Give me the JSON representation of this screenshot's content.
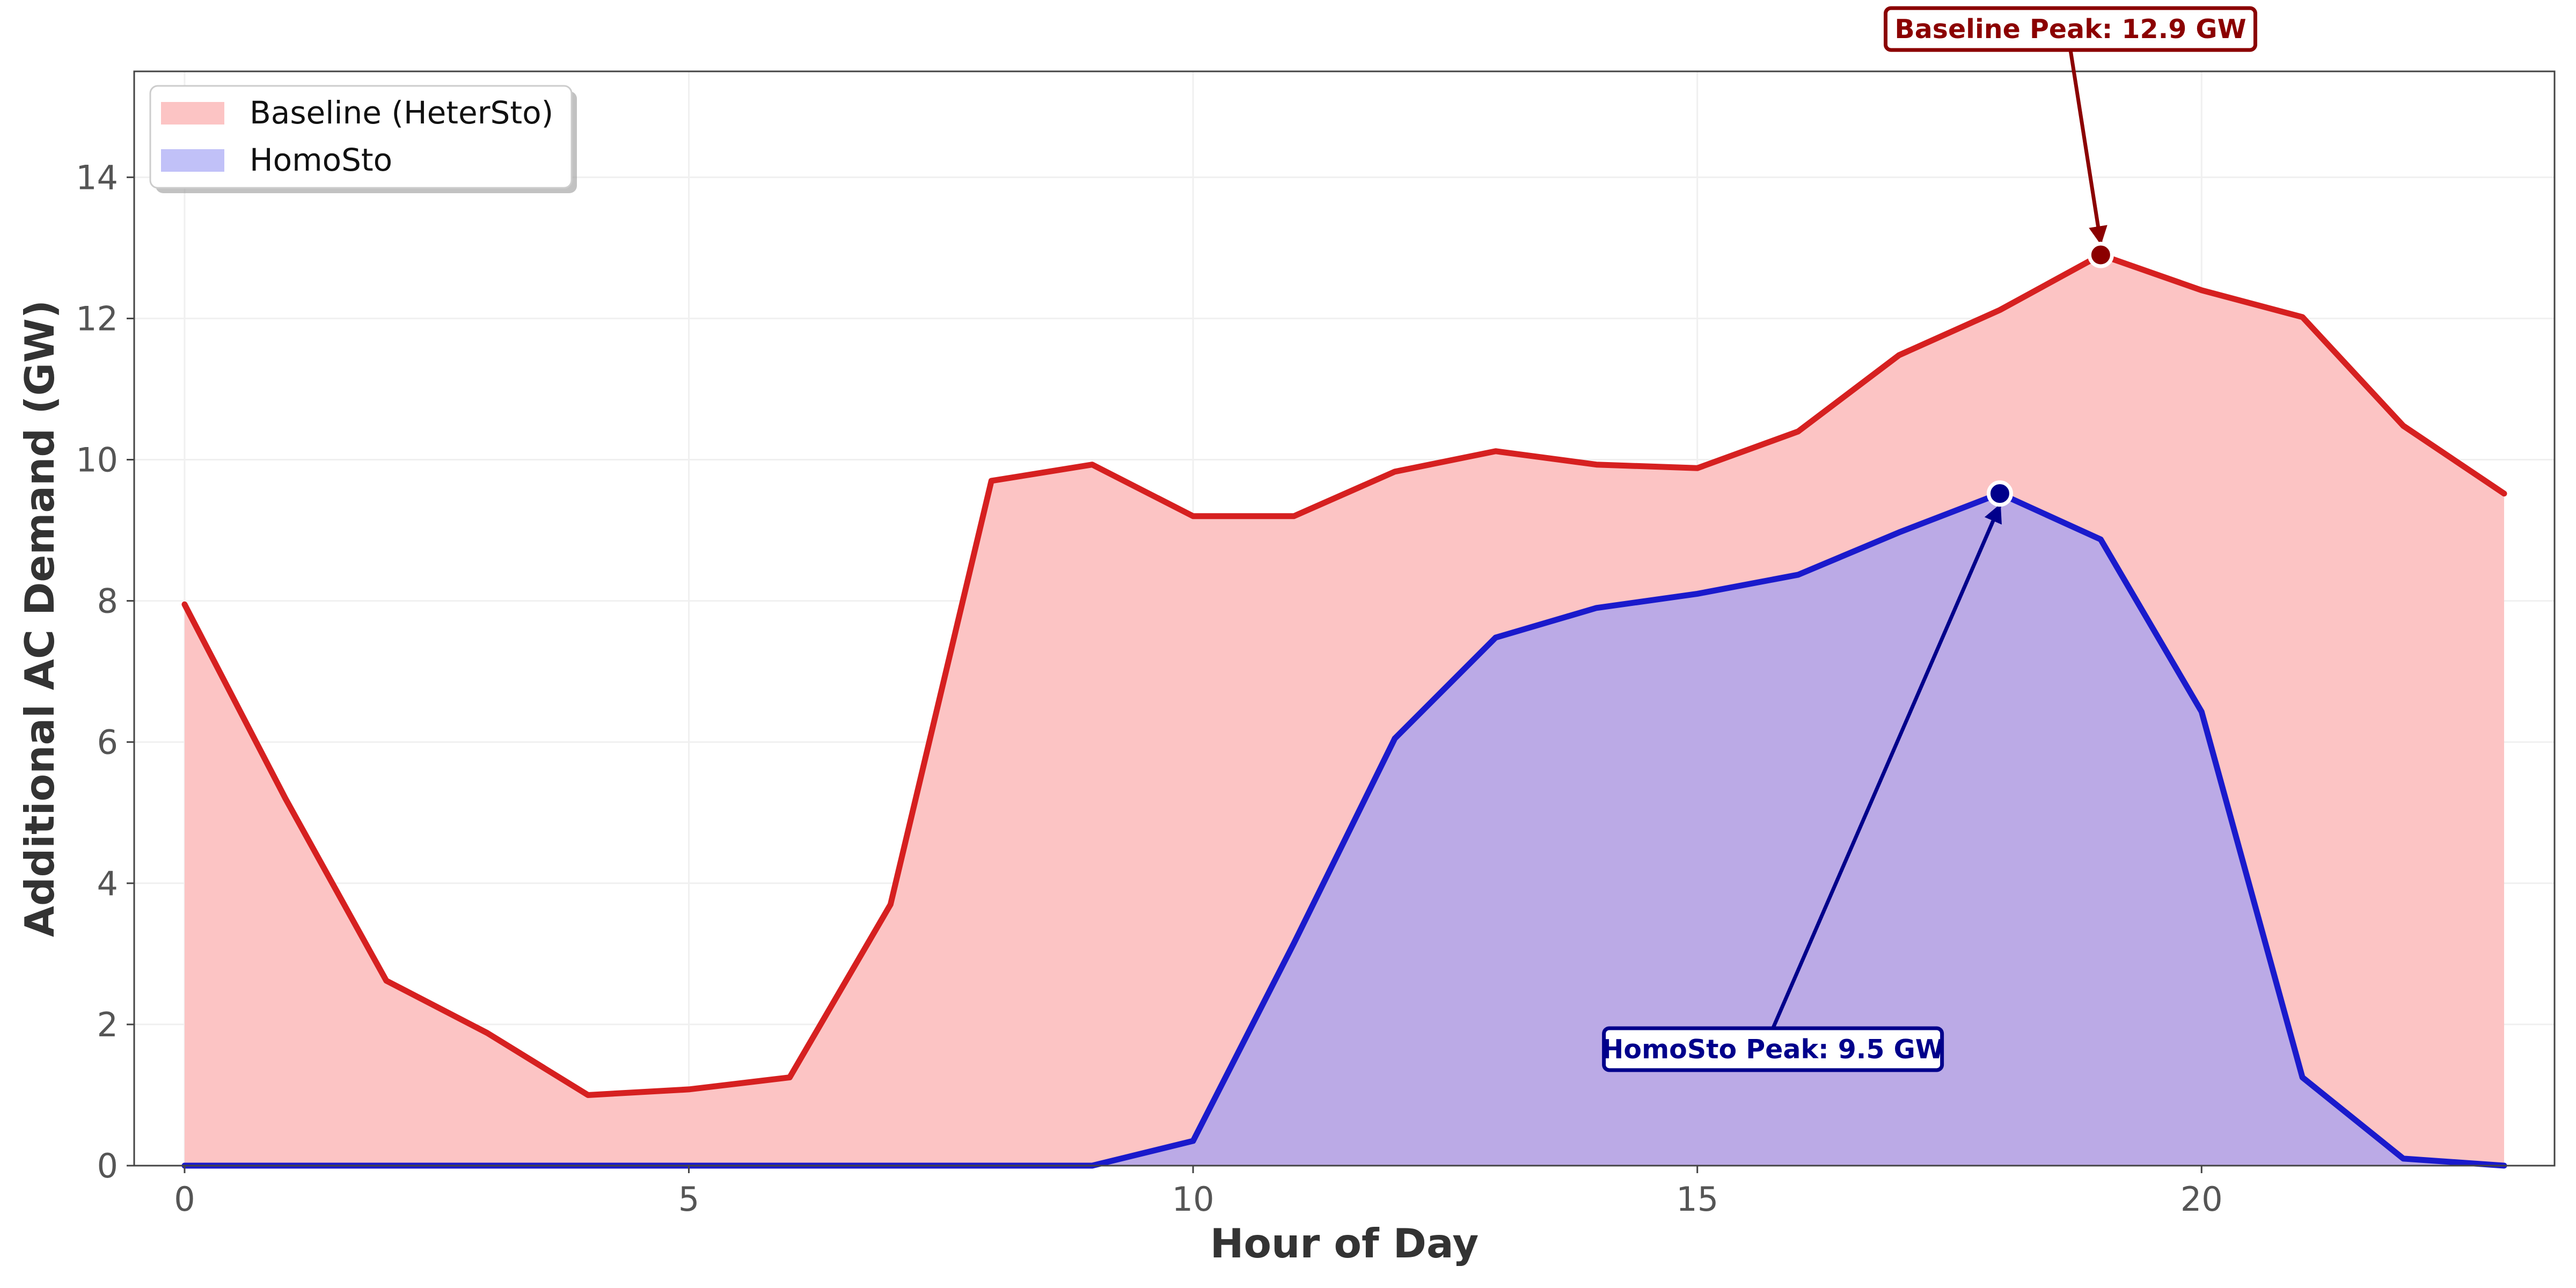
{
  "chart_data": {
    "type": "area",
    "title": "",
    "xlabel": "Hour of Day",
    "ylabel": "Additional AC Demand (GW)",
    "xlim": [
      -0.5,
      23.5
    ],
    "ylim": [
      0,
      15.5
    ],
    "xticks": [
      0,
      5,
      10,
      15,
      20
    ],
    "yticks": [
      0,
      2,
      4,
      6,
      8,
      10,
      12,
      14
    ],
    "grid": true,
    "legend_position": "top-left",
    "x": [
      0,
      1,
      2,
      3,
      4,
      5,
      6,
      7,
      8,
      9,
      10,
      11,
      12,
      13,
      14,
      15,
      16,
      17,
      18,
      19,
      20,
      21,
      22,
      23
    ],
    "series": [
      {
        "name": "Baseline (HeterSto)",
        "line_color": "#d62020",
        "fill_color": "#fcc4c4",
        "values": [
          7.95,
          5.2,
          2.62,
          1.88,
          1.0,
          1.08,
          1.25,
          3.7,
          9.7,
          9.93,
          9.2,
          9.2,
          9.83,
          10.12,
          9.93,
          9.88,
          10.4,
          11.48,
          12.12,
          12.9,
          12.4,
          12.02,
          10.48,
          9.52
        ]
      },
      {
        "name": "HomoSto",
        "line_color": "#1a1acc",
        "fill_color": "#9fa0f5",
        "values": [
          0,
          0,
          0,
          0,
          0,
          0,
          0,
          0,
          0,
          0,
          0.35,
          3.15,
          6.05,
          7.48,
          7.9,
          8.1,
          8.37,
          8.97,
          9.52,
          8.87,
          6.43,
          1.25,
          0.1,
          0.0
        ]
      }
    ],
    "annotations": [
      {
        "text": "Baseline Peak: 12.9 GW",
        "x": 19,
        "y": 12.9,
        "text_x": 18.7,
        "text_y": 16.1,
        "color": "#8b0000"
      },
      {
        "text": "HomoSto Peak: 9.5 GW",
        "x": 18,
        "y": 9.52,
        "text_x": 15.75,
        "text_y": 1.65,
        "color": "#00008b"
      }
    ]
  }
}
